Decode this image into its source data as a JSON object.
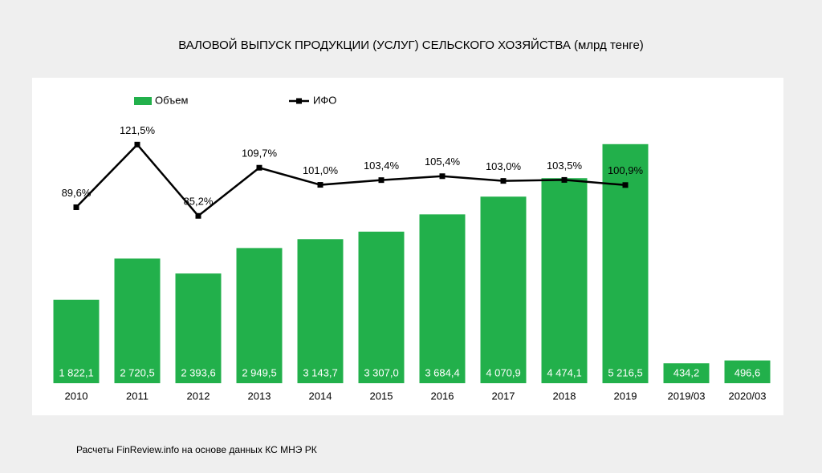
{
  "chart_data": {
    "type": "bar",
    "title": "ВАЛОВОЙ ВЫПУСК ПРОДУКЦИИ (УСЛУГ) СЕЛЬСКОГО ХОЗЯЙСТВА (млрд тенге)",
    "categories": [
      "2010",
      "2011",
      "2012",
      "2013",
      "2014",
      "2015",
      "2016",
      "2017",
      "2018",
      "2019",
      "2019/03",
      "2020/03"
    ],
    "series": [
      {
        "name": "Объем",
        "color": "#22b04b",
        "type": "bar",
        "values": [
          1822.1,
          2720.5,
          2393.6,
          2949.5,
          3143.7,
          3307.0,
          3684.4,
          4070.9,
          4474.1,
          5216.5,
          434.2,
          496.6
        ],
        "value_labels": [
          "1 822,1",
          "2 720,5",
          "2 393,6",
          "2 949,5",
          "3 143,7",
          "3 307,0",
          "3 684,4",
          "4 070,9",
          "4 474,1",
          "5 216,5",
          "434,2",
          "496,6"
        ]
      },
      {
        "name": "ИФО",
        "color": "#000000",
        "type": "line",
        "axis": "y2",
        "values": [
          89.6,
          121.5,
          85.2,
          109.7,
          101.0,
          103.4,
          105.4,
          103.0,
          103.5,
          100.9,
          null,
          null
        ],
        "value_labels": [
          "89,6%",
          "121,5%",
          "85,2%",
          "109,7%",
          "101,0%",
          "103,4%",
          "105,4%",
          "103,0%",
          "103,5%",
          "100,9%",
          null,
          null
        ]
      }
    ],
    "ylim": [
      0,
      6000
    ],
    "y2lim": [
      0,
      140
    ],
    "legend": "top-left",
    "source": "Расчеты FinReview.info на основе данных КС МНЭ РК"
  }
}
